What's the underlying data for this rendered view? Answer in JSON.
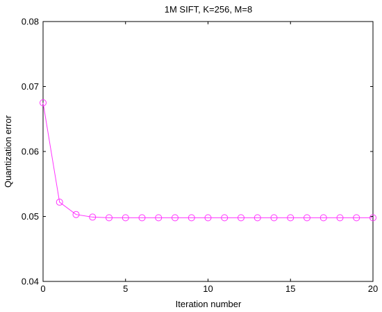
{
  "chart_data": {
    "type": "line",
    "title": "1M SIFT, K=256, M=8",
    "xlabel": "Iteration number",
    "ylabel": "Quantization error",
    "xlim": [
      0,
      20
    ],
    "ylim": [
      0.04,
      0.08
    ],
    "xticks": [
      0,
      5,
      10,
      15,
      20
    ],
    "yticks": [
      0.04,
      0.05,
      0.06,
      0.07,
      0.08
    ],
    "xtick_labels": [
      "0",
      "5",
      "10",
      "15",
      "20"
    ],
    "ytick_labels": [
      "0.04",
      "0.05",
      "0.06",
      "0.07",
      "0.08"
    ],
    "grid": false,
    "series": [
      {
        "color": "#ff33ff",
        "marker": "circle",
        "x": [
          0,
          1,
          2,
          3,
          4,
          5,
          6,
          7,
          8,
          9,
          10,
          11,
          12,
          13,
          14,
          15,
          16,
          17,
          18,
          19,
          20
        ],
        "y": [
          0.0675,
          0.0522,
          0.0503,
          0.0499,
          0.0498,
          0.0498,
          0.0498,
          0.0498,
          0.0498,
          0.0498,
          0.0498,
          0.0498,
          0.0498,
          0.0498,
          0.0498,
          0.0498,
          0.0498,
          0.0498,
          0.0498,
          0.0498,
          0.0498
        ]
      }
    ]
  }
}
